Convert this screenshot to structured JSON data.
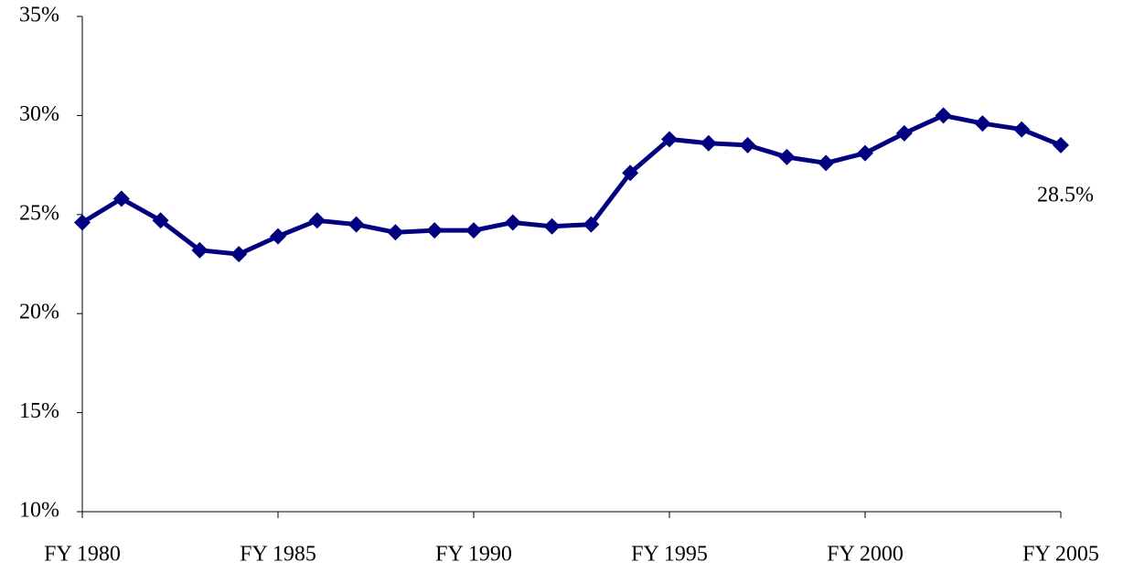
{
  "chart_data": {
    "type": "line",
    "categories": [
      "FY 1980",
      null,
      null,
      null,
      null,
      "FY 1985",
      null,
      null,
      null,
      null,
      "FY 1990",
      null,
      null,
      null,
      null,
      "FY 1995",
      null,
      null,
      null,
      null,
      "FY 2000",
      null,
      null,
      null,
      null,
      "FY 2005"
    ],
    "series": [
      {
        "color": "#000080",
        "values": [
          24.6,
          25.8,
          24.7,
          23.2,
          23.0,
          23.9,
          24.7,
          24.5,
          24.1,
          24.2,
          24.2,
          24.6,
          24.4,
          24.5,
          27.1,
          28.8,
          28.6,
          28.5,
          27.9,
          27.6,
          28.1,
          29.1,
          30.0,
          29.6,
          29.3,
          28.5
        ],
        "value_labels": [
          null,
          null,
          null,
          null,
          null,
          null,
          null,
          null,
          null,
          null,
          null,
          null,
          null,
          null,
          null,
          null,
          null,
          null,
          null,
          null,
          null,
          null,
          null,
          null,
          null,
          "28.5%"
        ]
      }
    ],
    "ylim": [
      10,
      35
    ],
    "yticks": [
      {
        "value": 10,
        "label": "10%"
      },
      {
        "value": 15,
        "label": "15%"
      },
      {
        "value": 20,
        "label": "20%"
      },
      {
        "value": 25,
        "label": "25%"
      },
      {
        "value": 30,
        "label": "30%"
      },
      {
        "value": 35,
        "label": "35%"
      }
    ],
    "grid": false
  }
}
